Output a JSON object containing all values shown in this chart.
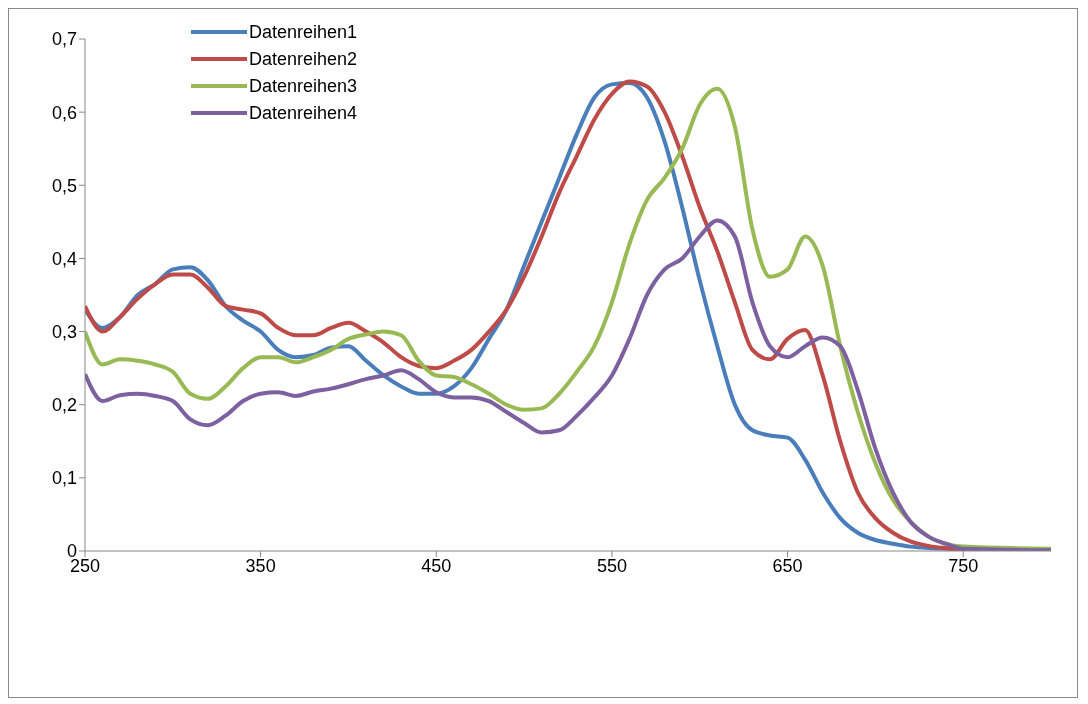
{
  "chart_data": {
    "type": "line",
    "x": [
      250,
      260,
      270,
      280,
      290,
      300,
      310,
      320,
      330,
      340,
      350,
      360,
      370,
      380,
      390,
      400,
      410,
      420,
      430,
      440,
      450,
      460,
      470,
      480,
      490,
      500,
      510,
      520,
      530,
      540,
      550,
      560,
      570,
      580,
      590,
      600,
      610,
      620,
      630,
      640,
      650,
      660,
      670,
      680,
      690,
      700,
      710,
      720,
      730,
      740,
      750,
      800
    ],
    "series": [
      {
        "name": "Datenreihen1",
        "color": "#4a7ebb",
        "values": [
          0.33,
          0.305,
          0.32,
          0.35,
          0.365,
          0.385,
          0.388,
          0.37,
          0.335,
          0.315,
          0.3,
          0.275,
          0.265,
          0.268,
          0.278,
          0.28,
          0.26,
          0.24,
          0.225,
          0.215,
          0.215,
          0.225,
          0.25,
          0.29,
          0.33,
          0.39,
          0.45,
          0.51,
          0.57,
          0.62,
          0.638,
          0.64,
          0.62,
          0.56,
          0.47,
          0.37,
          0.28,
          0.2,
          0.165,
          0.158,
          0.155,
          0.125,
          0.08,
          0.045,
          0.025,
          0.015,
          0.01,
          0.006,
          0.004,
          0.003,
          0.002,
          0.001
        ]
      },
      {
        "name": "Datenreihen2",
        "color": "#be4b48",
        "values": [
          0.335,
          0.3,
          0.32,
          0.345,
          0.365,
          0.378,
          0.378,
          0.36,
          0.335,
          0.33,
          0.325,
          0.305,
          0.295,
          0.295,
          0.305,
          0.312,
          0.3,
          0.285,
          0.265,
          0.253,
          0.25,
          0.26,
          0.275,
          0.3,
          0.33,
          0.375,
          0.43,
          0.49,
          0.54,
          0.59,
          0.625,
          0.642,
          0.635,
          0.6,
          0.54,
          0.47,
          0.41,
          0.34,
          0.275,
          0.262,
          0.29,
          0.302,
          0.24,
          0.15,
          0.08,
          0.045,
          0.025,
          0.013,
          0.007,
          0.004,
          0.002,
          0.001
        ]
      },
      {
        "name": "Datenreihen3",
        "color": "#98b954",
        "values": [
          0.3,
          0.255,
          0.262,
          0.26,
          0.255,
          0.245,
          0.215,
          0.208,
          0.225,
          0.25,
          0.265,
          0.265,
          0.258,
          0.265,
          0.275,
          0.29,
          0.296,
          0.3,
          0.295,
          0.26,
          0.24,
          0.238,
          0.228,
          0.215,
          0.2,
          0.193,
          0.195,
          0.215,
          0.245,
          0.28,
          0.34,
          0.42,
          0.48,
          0.51,
          0.55,
          0.61,
          0.632,
          0.58,
          0.44,
          0.375,
          0.385,
          0.43,
          0.39,
          0.28,
          0.19,
          0.12,
          0.07,
          0.04,
          0.02,
          0.01,
          0.006,
          0.003
        ]
      },
      {
        "name": "Datenreihen4",
        "color": "#7d60a0",
        "values": [
          0.242,
          0.205,
          0.213,
          0.215,
          0.212,
          0.205,
          0.18,
          0.172,
          0.185,
          0.205,
          0.215,
          0.217,
          0.212,
          0.218,
          0.222,
          0.228,
          0.235,
          0.24,
          0.247,
          0.235,
          0.217,
          0.21,
          0.21,
          0.205,
          0.19,
          0.175,
          0.162,
          0.165,
          0.185,
          0.21,
          0.24,
          0.29,
          0.35,
          0.385,
          0.4,
          0.43,
          0.452,
          0.43,
          0.34,
          0.28,
          0.265,
          0.28,
          0.292,
          0.28,
          0.22,
          0.14,
          0.08,
          0.04,
          0.02,
          0.01,
          0.003,
          0.001
        ]
      }
    ],
    "xlim": [
      250,
      800
    ],
    "xticks": [
      250,
      350,
      450,
      550,
      650,
      750
    ],
    "ylim": [
      0,
      0.7
    ],
    "yticks": [
      {
        "value": 0,
        "label": "0"
      },
      {
        "value": 0.1,
        "label": "0,1"
      },
      {
        "value": 0.2,
        "label": "0,2"
      },
      {
        "value": 0.3,
        "label": "0,3"
      },
      {
        "value": 0.4,
        "label": "0,4"
      },
      {
        "value": 0.5,
        "label": "0,5"
      },
      {
        "value": 0.6,
        "label": "0,6"
      },
      {
        "value": 0.7,
        "label": "0,7"
      }
    ],
    "grid": false,
    "legend": "top left",
    "marker": "none",
    "line_style": "solid"
  }
}
